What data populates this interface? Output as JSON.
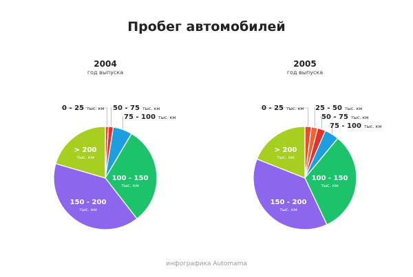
{
  "title": "Пробег автомобилей",
  "footer": "инфографика Automama",
  "colors": {
    "0 - 25": "#ea4b35",
    "25 - 50": "#f0642e",
    "50 - 75": "#e5312c",
    "75 - 100": "#1d9ee0",
    "100 - 150": "#1dc36b",
    "150 - 200": "#8d66ee",
    "> 200": "#a7cf21"
  },
  "chart_data": [
    {
      "type": "pie",
      "title": "2004",
      "subtitle": "год выпуска",
      "unit": "тыс. км",
      "slices": [
        {
          "label": "0 - 25",
          "value": 1
        },
        {
          "label": "50 - 75",
          "value": 1.5
        },
        {
          "label": "75 - 100",
          "value": 6
        },
        {
          "label": "100 - 150",
          "value": 31
        },
        {
          "label": "150 - 200",
          "value": 40
        },
        {
          "label": "> 200",
          "value": 20.5
        }
      ]
    },
    {
      "type": "pie",
      "title": "2005",
      "subtitle": "год выпуска",
      "unit": "тыс. км",
      "slices": [
        {
          "label": "0 - 25",
          "value": 2
        },
        {
          "label": "25 - 50",
          "value": 2
        },
        {
          "label": "50 - 75",
          "value": 2.5
        },
        {
          "label": "75 - 100",
          "value": 4.5
        },
        {
          "label": "100 - 150",
          "value": 32
        },
        {
          "label": "150 - 200",
          "value": 38
        },
        {
          "label": "> 200",
          "value": 19
        }
      ]
    }
  ]
}
